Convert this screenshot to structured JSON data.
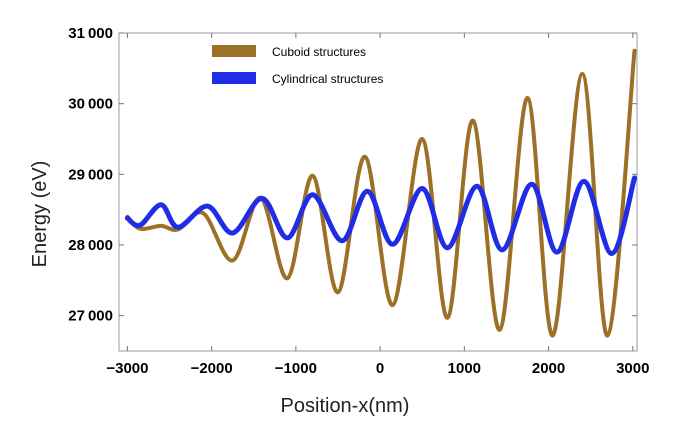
{
  "chart_data": {
    "type": "line",
    "xlabel": "Position-x(nm)",
    "ylabel": "Energy (eV)",
    "xlim": [
      -3100,
      3050
    ],
    "ylim": [
      26500,
      31000
    ],
    "x_ticks": [
      -3000,
      -2000,
      -1000,
      0,
      1000,
      2000,
      3000
    ],
    "x_tick_labels": [
      "−3000",
      "−2000",
      "−1000",
      "0",
      "1000",
      "2000",
      "3000"
    ],
    "y_ticks": [
      27000,
      28000,
      29000,
      30000,
      31000
    ],
    "y_tick_labels": [
      "27 000",
      "28 000",
      "29 000",
      "30 000",
      "31 000"
    ],
    "legend_position": "top-left",
    "series": [
      {
        "name": "Cuboid structures",
        "color": "#9c7026",
        "points": [
          [
            -3000,
            28400
          ],
          [
            -2850,
            28230
          ],
          [
            -2600,
            28270
          ],
          [
            -2400,
            28220
          ],
          [
            -2100,
            28450
          ],
          [
            -1750,
            27780
          ],
          [
            -1420,
            28670
          ],
          [
            -1100,
            27530
          ],
          [
            -800,
            28980
          ],
          [
            -500,
            27330
          ],
          [
            -180,
            29250
          ],
          [
            150,
            27150
          ],
          [
            500,
            29500
          ],
          [
            800,
            26970
          ],
          [
            1100,
            29760
          ],
          [
            1420,
            26800
          ],
          [
            1750,
            30080
          ],
          [
            2050,
            26720
          ],
          [
            2400,
            30420
          ],
          [
            2700,
            26720
          ],
          [
            3020,
            30750
          ]
        ]
      },
      {
        "name": "Cylindrical structures",
        "color": "#1f2ee6",
        "points": [
          [
            -3000,
            28380
          ],
          [
            -2850,
            28280
          ],
          [
            -2600,
            28570
          ],
          [
            -2400,
            28250
          ],
          [
            -2050,
            28550
          ],
          [
            -1750,
            28170
          ],
          [
            -1400,
            28660
          ],
          [
            -1100,
            28100
          ],
          [
            -800,
            28710
          ],
          [
            -450,
            28060
          ],
          [
            -150,
            28760
          ],
          [
            150,
            28010
          ],
          [
            500,
            28800
          ],
          [
            800,
            27960
          ],
          [
            1150,
            28830
          ],
          [
            1450,
            27930
          ],
          [
            1800,
            28860
          ],
          [
            2100,
            27900
          ],
          [
            2420,
            28900
          ],
          [
            2750,
            27880
          ],
          [
            3020,
            28950
          ]
        ]
      }
    ]
  }
}
